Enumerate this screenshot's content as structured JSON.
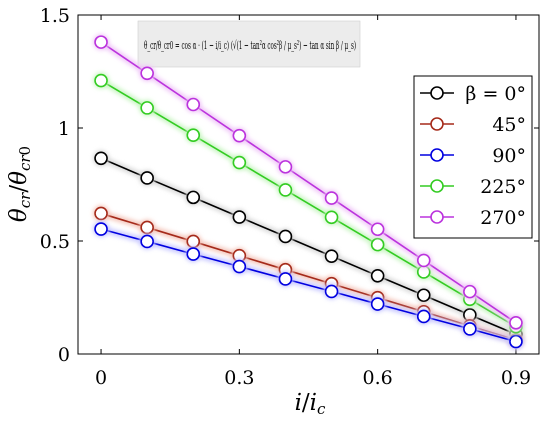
{
  "chart_data": {
    "type": "line",
    "xlabel": "i/i_c",
    "ylabel": "θ_cr/θ_cr0",
    "xlim": [
      -0.05,
      0.95
    ],
    "ylim": [
      0,
      1.5
    ],
    "x_ticks": [
      "0",
      "0.3",
      "0.6",
      "0.9"
    ],
    "x_tick_values": [
      0,
      0.3,
      0.6,
      0.9
    ],
    "y_ticks": [
      "0",
      "0.5",
      "1",
      "1.5"
    ],
    "y_tick_values": [
      0,
      0.5,
      1,
      1.5
    ],
    "grid": false,
    "legend_position": "right",
    "equation": "θ_cr/θ_cr0 = cos α · (1 − i/i_c) (√(1 − tan²α cos²β / μ_s²) − tan α sin β / μ_s)",
    "x": [
      0,
      0.1,
      0.2,
      0.3,
      0.4,
      0.5,
      0.6,
      0.7,
      0.8,
      0.9
    ],
    "series": [
      {
        "name": "β = 0°",
        "color": "#000000",
        "glow": "#d9d9d9",
        "values": [
          0.866,
          0.779,
          0.693,
          0.606,
          0.52,
          0.433,
          0.346,
          0.26,
          0.173,
          0.087
        ]
      },
      {
        "name": "45°",
        "color": "#a52a1a",
        "glow": "#f4c6bb",
        "values": [
          0.622,
          0.56,
          0.498,
          0.435,
          0.373,
          0.311,
          0.249,
          0.187,
          0.124,
          0.062
        ]
      },
      {
        "name": "90°",
        "color": "#0000e0",
        "glow": "#c8c8ff",
        "values": [
          0.553,
          0.498,
          0.442,
          0.387,
          0.332,
          0.277,
          0.221,
          0.166,
          0.111,
          0.055
        ]
      },
      {
        "name": "225°",
        "color": "#33cc22",
        "glow": "#c9f5c2",
        "values": [
          1.21,
          1.089,
          0.968,
          0.847,
          0.726,
          0.605,
          0.484,
          0.363,
          0.242,
          0.121
        ]
      },
      {
        "name": "270°",
        "color": "#bb33dd",
        "glow": "#f0c8f8",
        "values": [
          1.38,
          1.242,
          1.104,
          0.966,
          0.828,
          0.69,
          0.552,
          0.414,
          0.276,
          0.138
        ]
      }
    ]
  }
}
